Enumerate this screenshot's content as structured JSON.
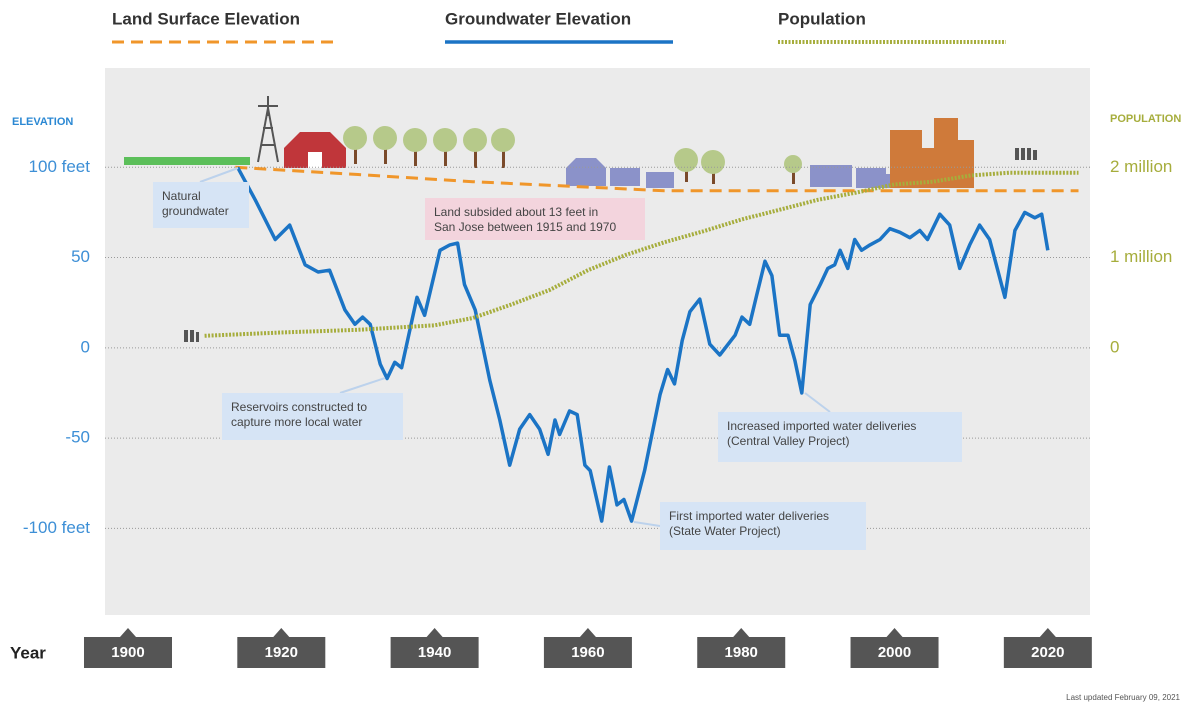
{
  "chart_data": {
    "type": "line",
    "xlabel": "Year",
    "ylabel": "ELEVATION",
    "y2label": "POPULATION",
    "footnote": "Last updated February 09, 2021",
    "xlim": [
      1897,
      2025.5
    ],
    "xticks": [
      1900,
      1920,
      1940,
      1960,
      1980,
      2000,
      2020
    ],
    "ylim": [
      -148,
      155
    ],
    "yticks": [
      {
        "value": 100,
        "label": "100 feet"
      },
      50,
      0,
      -50,
      {
        "value": -100,
        "label": "-100 feet"
      }
    ],
    "y2lim": [
      -2960000,
      3100000
    ],
    "y2ticks": [
      {
        "value": 2000000,
        "label": "2 million"
      },
      {
        "value": 1000000,
        "label": "1 million"
      },
      0
    ],
    "grid": true,
    "series": [
      {
        "name": "Land Surface Elevation",
        "color": "#f0962a",
        "style": "dashed",
        "x": [
          1914,
          1930,
          1945,
          1960,
          1970,
          1990,
          2000,
          2024
        ],
        "values": [
          100,
          96,
          92,
          89,
          87,
          87,
          87,
          87
        ]
      },
      {
        "name": "Groundwater Elevation",
        "color": "#1b74c5",
        "style": "solid",
        "x": [
          1914.3,
          1916.6,
          1919.2,
          1921.1,
          1923.1,
          1924.8,
          1926.3,
          1928.3,
          1929.6,
          1930.6,
          1931.6,
          1932.9,
          1933.8,
          1934.8,
          1935.7,
          1937.7,
          1938.7,
          1940.7,
          1942,
          1943,
          1943.9,
          1945.3,
          1947.2,
          1948.5,
          1949.8,
          1951.1,
          1952.4,
          1953.7,
          1954.8,
          1955.7,
          1956.3,
          1957.6,
          1958.6,
          1959.6,
          1960.3,
          1961.8,
          1962.8,
          1963.8,
          1964.7,
          1965.7,
          1967.4,
          1969.4,
          1970.4,
          1971.3,
          1972.3,
          1973.3,
          1974.6,
          1975.9,
          1977.2,
          1979.2,
          1980.1,
          1981.1,
          1982,
          1983.1,
          1984,
          1985,
          1986.1,
          1987,
          1987.9,
          1989,
          1990.3,
          1991.3,
          1992.2,
          1992.9,
          1993.9,
          1994.8,
          1995.7,
          1996.8,
          1998.1,
          1999.4,
          2000.7,
          2002,
          2003.3,
          2004.3,
          2005.9,
          2007.2,
          2008.5,
          2009.8,
          2011.1,
          2012.4,
          2014.4,
          2015.7,
          2017,
          2018.3,
          2019.2,
          2020
        ],
        "values": [
          100,
          82,
          60,
          68,
          46,
          42,
          43,
          21,
          13,
          17,
          13,
          -9,
          -17,
          -8,
          -11,
          28,
          18,
          54,
          57,
          58,
          35,
          21,
          -18,
          -40,
          -65,
          -45,
          -37,
          -45,
          -59,
          -40,
          -48,
          -35,
          -37,
          -65,
          -68,
          -96,
          -66,
          -87,
          -84,
          -96,
          -68,
          -26,
          -12,
          -20,
          4,
          20,
          27,
          2,
          -4,
          7,
          17,
          13,
          29,
          48,
          40,
          7,
          7,
          -7,
          -25,
          24,
          35,
          44,
          46,
          54,
          44,
          60,
          54,
          57,
          60,
          66,
          64,
          61,
          65,
          60,
          74,
          68,
          44,
          57,
          68,
          60,
          28,
          65,
          75,
          72,
          74,
          54
        ]
      },
      {
        "name": "Population",
        "color": "#a6ad3c",
        "style": "dotted",
        "axis": "y2",
        "x": [
          1910,
          1920,
          1930,
          1940,
          1945,
          1950,
          1955,
          1960,
          1965,
          1970,
          1975,
          1980,
          1985,
          1990,
          1995,
          2000,
          2005,
          2010,
          2015,
          2024
        ],
        "values": [
          133000,
          170000,
          200000,
          250000,
          330000,
          480000,
          640000,
          860000,
          1030000,
          1170000,
          1290000,
          1420000,
          1530000,
          1640000,
          1720000,
          1810000,
          1840000,
          1910000,
          1940000,
          1940000
        ]
      }
    ],
    "annotations": [
      {
        "lines": [
          "Natural",
          "groundwater"
        ]
      },
      {
        "lines": [
          "Land subsided about 13 feet in",
          "San Jose between 1915 and 1970"
        ]
      },
      {
        "lines": [
          "Reservoirs constructed to",
          "capture more local water"
        ]
      },
      {
        "lines": [
          "Increased imported water deliveries",
          "(Central Valley Project)"
        ]
      },
      {
        "lines": [
          "First imported water deliveries",
          "(State Water Project)"
        ]
      }
    ]
  }
}
